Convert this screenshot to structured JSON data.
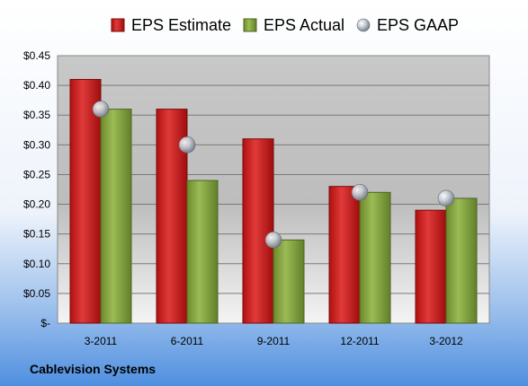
{
  "company": "Cablevision Systems",
  "chart_data": {
    "type": "bar",
    "categories": [
      "3-2011",
      "6-2011",
      "9-2011",
      "12-2011",
      "3-2012"
    ],
    "series": [
      {
        "name": "EPS Estimate",
        "values": [
          0.41,
          0.36,
          0.31,
          0.23,
          0.19
        ],
        "color": "#cc1f1f",
        "kind": "bar"
      },
      {
        "name": "EPS Actual",
        "values": [
          0.36,
          0.24,
          0.14,
          0.22,
          0.21
        ],
        "color": "#7f9a3a",
        "kind": "bar"
      },
      {
        "name": "EPS GAAP",
        "values": [
          0.36,
          0.3,
          0.14,
          0.22,
          0.21
        ],
        "color": "#b0b8c4",
        "kind": "marker"
      }
    ],
    "yticks": [
      "$-",
      "$0.05",
      "$0.10",
      "$0.15",
      "$0.20",
      "$0.25",
      "$0.30",
      "$0.35",
      "$0.40",
      "$0.45"
    ],
    "ylim": [
      0,
      0.45
    ],
    "grid": true,
    "legend": "top"
  }
}
